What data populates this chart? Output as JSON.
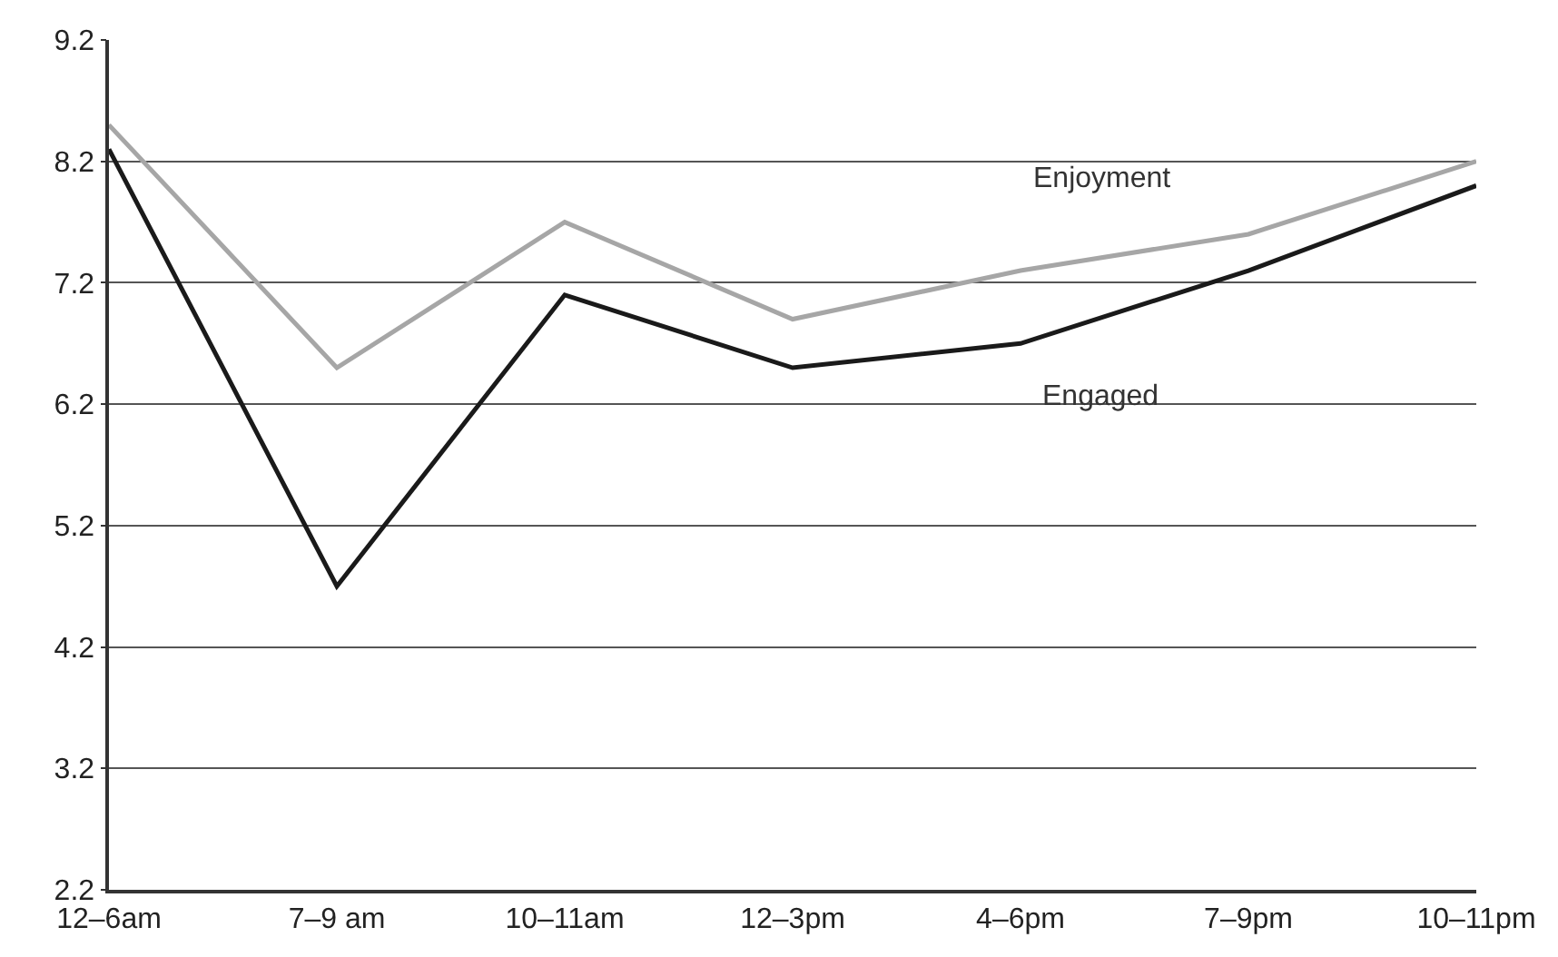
{
  "chart_data": {
    "type": "line",
    "categories": [
      "12–6am",
      "7–9 am",
      "10–11am",
      "12–3pm",
      "4–6pm",
      "7–9pm",
      "10–11pm"
    ],
    "series": [
      {
        "name": "Enjoyment",
        "color": "#a6a6a6",
        "values": [
          8.5,
          6.5,
          7.7,
          6.9,
          7.3,
          7.6,
          8.2
        ]
      },
      {
        "name": "Engaged",
        "color": "#1a1a1a",
        "values": [
          8.3,
          4.7,
          7.1,
          6.5,
          6.7,
          7.3,
          8.0
        ]
      }
    ],
    "ylim": [
      2.2,
      9.2
    ],
    "yticks": [
      2.2,
      3.2,
      4.2,
      5.2,
      6.2,
      7.2,
      8.2,
      9.2
    ],
    "grid": "y",
    "legend": false,
    "marker": "none",
    "line_style": "solid"
  }
}
